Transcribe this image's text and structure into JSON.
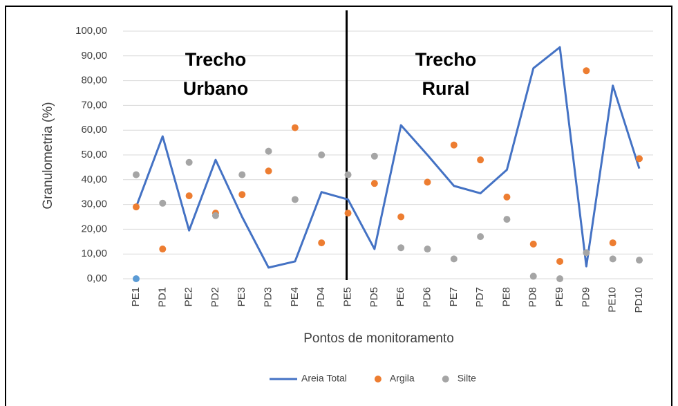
{
  "chart_data": {
    "type": "line",
    "x_label": "Pontos de monitoramento",
    "y_label": "Granulometria (%)",
    "categories": [
      "PE1",
      "PD1",
      "PE2",
      "PD2",
      "PE3",
      "PD3",
      "PE4",
      "PD4",
      "PE5",
      "PD5",
      "PE6",
      "PD6",
      "PE7",
      "PD7",
      "PE8",
      "PD8",
      "PE9",
      "PD9",
      "PE10",
      "PD10"
    ],
    "series": [
      {
        "name": "Areia Total",
        "color": "#4472c4",
        "style": "line",
        "values": [
          29,
          57.5,
          19.5,
          48,
          25,
          4.5,
          7,
          35,
          32,
          12,
          62,
          50,
          37.5,
          34.5,
          44,
          85,
          93.5,
          5,
          78,
          44.5
        ]
      },
      {
        "name": "Argila",
        "color": "#ed7d31",
        "style": "marker",
        "values": [
          29,
          12,
          33.5,
          26.5,
          34,
          43.5,
          61,
          14.5,
          26.5,
          38.5,
          25,
          39,
          54,
          48,
          33,
          14,
          7,
          84,
          14.5,
          48.5
        ]
      },
      {
        "name": "Silte",
        "color": "#a5a5a5",
        "style": "marker",
        "values": [
          42,
          30.5,
          47,
          25.5,
          42,
          51.5,
          32,
          50,
          42,
          49.5,
          12.5,
          12,
          8,
          17,
          24,
          1,
          0,
          10.5,
          8,
          7.5
        ]
      },
      {
        "color": "#5b9bd5",
        "style": "marker",
        "values": [
          0,
          null,
          null,
          null,
          null,
          null,
          null,
          null,
          null,
          null,
          null,
          null,
          null,
          null,
          null,
          null,
          null,
          null,
          null,
          null
        ]
      }
    ],
    "annotations": [
      {
        "lines": [
          "Trecho",
          "Urbano"
        ]
      },
      {
        "lines": [
          "Trecho",
          "Rural"
        ]
      }
    ],
    "ylim": [
      0,
      100
    ],
    "yticks": [
      {
        "value": 0,
        "label": "0,00"
      },
      {
        "value": 10,
        "label": "10,00"
      },
      {
        "value": 20,
        "label": "20,00"
      },
      {
        "value": 30,
        "label": "30,00"
      },
      {
        "value": 40,
        "label": "40,00"
      },
      {
        "value": 50,
        "label": "50,00"
      },
      {
        "value": 60,
        "label": "60,00"
      },
      {
        "value": 70,
        "label": "70,00"
      },
      {
        "value": 80,
        "label": "80,00"
      },
      {
        "value": 90,
        "label": "90,00"
      },
      {
        "value": 100,
        "label": "100,00"
      }
    ],
    "grid": true,
    "legend": "bottom"
  }
}
